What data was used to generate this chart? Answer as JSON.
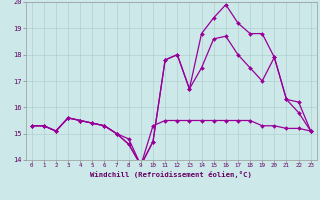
{
  "xlabel": "Windchill (Refroidissement éolien,°C)",
  "bg_color": "#cce8e8",
  "line_color": "#990099",
  "xlim": [
    -0.5,
    23.5
  ],
  "ylim": [
    14,
    20
  ],
  "xticks": [
    0,
    1,
    2,
    3,
    4,
    5,
    6,
    7,
    8,
    9,
    10,
    11,
    12,
    13,
    14,
    15,
    16,
    17,
    18,
    19,
    20,
    21,
    22,
    23
  ],
  "yticks": [
    14,
    15,
    16,
    17,
    18,
    19,
    20
  ],
  "line1_x": [
    0,
    1,
    2,
    3,
    4,
    5,
    6,
    7,
    8,
    9,
    10,
    11,
    12,
    13,
    14,
    15,
    16,
    17,
    18,
    19,
    20,
    21,
    22,
    23
  ],
  "line1_y": [
    15.3,
    15.3,
    15.1,
    15.6,
    15.5,
    15.4,
    15.3,
    15.0,
    14.8,
    13.8,
    15.3,
    15.5,
    15.5,
    15.5,
    15.5,
    15.5,
    15.5,
    15.5,
    15.5,
    15.3,
    15.3,
    15.2,
    15.2,
    15.1
  ],
  "line2_x": [
    0,
    1,
    2,
    3,
    4,
    5,
    6,
    7,
    8,
    9,
    10,
    11,
    12,
    13,
    14,
    15,
    16,
    17,
    18,
    19,
    20,
    21,
    22,
    23
  ],
  "line2_y": [
    15.3,
    15.3,
    15.1,
    15.6,
    15.5,
    15.4,
    15.3,
    15.0,
    14.6,
    13.8,
    14.7,
    17.8,
    18.0,
    16.7,
    17.5,
    18.6,
    18.7,
    18.0,
    17.5,
    17.0,
    17.9,
    16.3,
    16.2,
    15.1
  ],
  "line3_x": [
    0,
    1,
    2,
    3,
    4,
    5,
    6,
    7,
    8,
    9,
    10,
    11,
    12,
    13,
    14,
    15,
    16,
    17,
    18,
    19,
    20,
    21,
    22,
    23
  ],
  "line3_y": [
    15.3,
    15.3,
    15.1,
    15.6,
    15.5,
    15.4,
    15.3,
    15.0,
    14.6,
    13.8,
    14.7,
    17.8,
    18.0,
    16.7,
    18.8,
    19.4,
    19.9,
    19.2,
    18.8,
    18.8,
    17.9,
    16.3,
    15.8,
    15.1
  ]
}
